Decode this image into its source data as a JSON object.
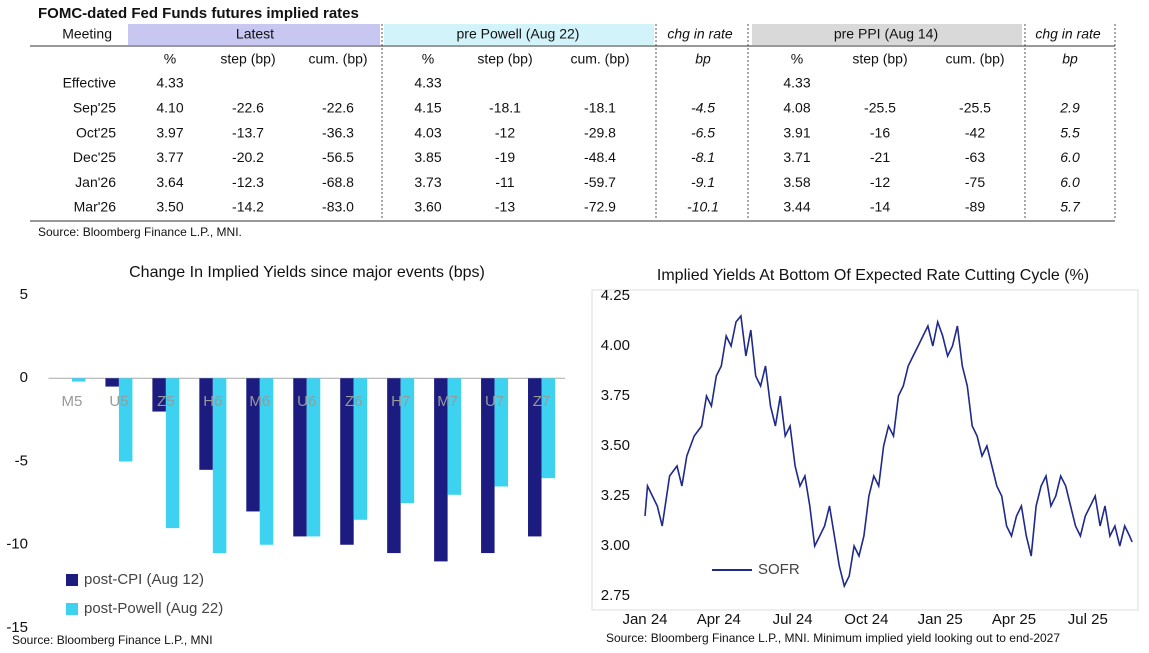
{
  "table": {
    "title": "FOMC-dated Fed Funds futures implied rates",
    "header": [
      "Meeting",
      "Latest",
      "pre Powell (Aug 22)",
      "chg in rate",
      "pre PPI (Aug 14)",
      "chg in rate"
    ],
    "subheader": [
      "%",
      "step (bp)",
      "cum. (bp)",
      "%",
      "step (bp)",
      "cum. (bp)",
      "bp",
      "%",
      "step (bp)",
      "cum. (bp)",
      "bp"
    ],
    "rows": [
      [
        "Effective",
        "4.33",
        null,
        null,
        "4.33",
        null,
        null,
        null,
        "4.33",
        null,
        null,
        null
      ],
      [
        "Sep'25",
        "4.10",
        "-22.6",
        "-22.6",
        "4.15",
        "-18.1",
        "-18.1",
        "-4.5",
        "4.08",
        "-25.5",
        "-25.5",
        "2.9"
      ],
      [
        "Oct'25",
        "3.97",
        "-13.7",
        "-36.3",
        "4.03",
        "-12",
        "-29.8",
        "-6.5",
        "3.91",
        "-16",
        "-42",
        "5.5"
      ],
      [
        "Dec'25",
        "3.77",
        "-20.2",
        "-56.5",
        "3.85",
        "-19",
        "-48.4",
        "-8.1",
        "3.71",
        "-21",
        "-63",
        "6.0"
      ],
      [
        "Jan'26",
        "3.64",
        "-12.3",
        "-68.8",
        "3.73",
        "-11",
        "-59.7",
        "-9.1",
        "3.58",
        "-12",
        "-75",
        "6.0"
      ],
      [
        "Mar'26",
        "3.50",
        "-14.2",
        "-83.0",
        "3.60",
        "-13",
        "-72.9",
        "-10.1",
        "3.44",
        "-14",
        "-89",
        "5.7"
      ]
    ],
    "source": "Source: Bloomberg Finance L.P., MNI."
  },
  "chart_data": [
    {
      "type": "bar",
      "title": "Change In Implied Yields since major events (bps)",
      "categories": [
        "M5",
        "U5",
        "Z5",
        "H6",
        "M6",
        "U6",
        "Z6",
        "H7",
        "M7",
        "U7",
        "Z7"
      ],
      "series": [
        {
          "name": "post-CPI (Aug 12)",
          "color": "#1c1c80",
          "values": [
            0,
            -0.5,
            -2,
            -5.5,
            -8,
            -9.5,
            -10,
            -10.5,
            -11,
            -10.5,
            -9.5
          ]
        },
        {
          "name": "post-Powell (Aug 22)",
          "color": "#3dd3f0",
          "values": [
            -0.2,
            -5,
            -9,
            -10.5,
            -10,
            -9.5,
            -8.5,
            -7.5,
            -7,
            -6.5,
            -6
          ]
        }
      ],
      "ylim": [
        -15,
        5
      ],
      "yticks": [
        5,
        0,
        -5,
        -10,
        -15
      ],
      "legend": "bottom-left",
      "source": "Source: Bloomberg Finance L.P., MNI"
    },
    {
      "type": "line",
      "title": "Implied Yields At Bottom Of Expected Rate Cutting Cycle (%)",
      "x": [
        0,
        0.1,
        0.3,
        0.5,
        0.7,
        1.0,
        1.3,
        1.5,
        1.7,
        2.0,
        2.3,
        2.5,
        2.7,
        2.9,
        3.1,
        3.3,
        3.5,
        3.7,
        3.9,
        4.1,
        4.3,
        4.5,
        4.7,
        4.9,
        5.1,
        5.3,
        5.5,
        5.7,
        5.9,
        6.1,
        6.3,
        6.5,
        6.7,
        6.9,
        7.1,
        7.3,
        7.5,
        7.7,
        7.9,
        8.1,
        8.3,
        8.5,
        8.7,
        8.9,
        9.1,
        9.3,
        9.5,
        9.7,
        9.9,
        10.1,
        10.3,
        10.5,
        10.7,
        10.9,
        11.1,
        11.3,
        11.5,
        11.7,
        11.9,
        12.1,
        12.3,
        12.5,
        12.7,
        12.9,
        13.1,
        13.3,
        13.5,
        13.7,
        13.9,
        14.1,
        14.3,
        14.5,
        14.7,
        14.9,
        15.1,
        15.3,
        15.5,
        15.7,
        15.9,
        16.1,
        16.3,
        16.5,
        16.7,
        16.9,
        17.1,
        17.3,
        17.5,
        17.7,
        17.9,
        18.1,
        18.3,
        18.5,
        18.7,
        18.9,
        19.1,
        19.3,
        19.5,
        19.7,
        19.8
      ],
      "series": [
        {
          "name": "SOFR",
          "color": "#1f2a8a",
          "values": [
            3.15,
            3.3,
            3.25,
            3.2,
            3.1,
            3.35,
            3.4,
            3.3,
            3.45,
            3.55,
            3.6,
            3.75,
            3.7,
            3.85,
            3.9,
            4.05,
            4.0,
            4.12,
            4.15,
            3.95,
            4.08,
            3.85,
            3.8,
            3.9,
            3.7,
            3.6,
            3.75,
            3.55,
            3.6,
            3.4,
            3.3,
            3.35,
            3.2,
            3.0,
            3.05,
            3.1,
            3.2,
            3.05,
            2.9,
            2.8,
            2.85,
            3.0,
            2.95,
            3.05,
            3.25,
            3.35,
            3.3,
            3.5,
            3.6,
            3.55,
            3.75,
            3.8,
            3.9,
            3.95,
            4.0,
            4.05,
            4.1,
            4.0,
            4.12,
            4.05,
            3.95,
            4.0,
            4.1,
            3.9,
            3.8,
            3.6,
            3.55,
            3.45,
            3.5,
            3.4,
            3.3,
            3.25,
            3.1,
            3.05,
            3.15,
            3.2,
            3.05,
            2.95,
            3.2,
            3.3,
            3.35,
            3.2,
            3.25,
            3.35,
            3.3,
            3.2,
            3.1,
            3.05,
            3.15,
            3.2,
            3.25,
            3.1,
            3.2,
            3.05,
            3.1,
            3.0,
            3.1,
            3.05,
            3.02
          ]
        }
      ],
      "xlim": [
        0,
        19.8
      ],
      "xticks": [
        {
          "value": 0,
          "label": "Jan 24"
        },
        {
          "value": 3,
          "label": "Apr 24"
        },
        {
          "value": 6,
          "label": "Jul 24"
        },
        {
          "value": 9,
          "label": "Oct 24"
        },
        {
          "value": 12,
          "label": "Jan 25"
        },
        {
          "value": 15,
          "label": "Apr 25"
        },
        {
          "value": 18,
          "label": "Jul 25"
        }
      ],
      "ylim": [
        2.75,
        4.25
      ],
      "yticks": [
        4.25,
        {
          "value": 4,
          "label": "4.00"
        },
        3.75,
        {
          "value": 3.5,
          "label": "3.50"
        },
        3.25,
        {
          "value": 3,
          "label": "3.00"
        },
        2.75
      ],
      "legend": "bottom-left",
      "source": "Source: Bloomberg Finance L.P., MNI. Minimum implied yield looking out to end-2027"
    }
  ]
}
